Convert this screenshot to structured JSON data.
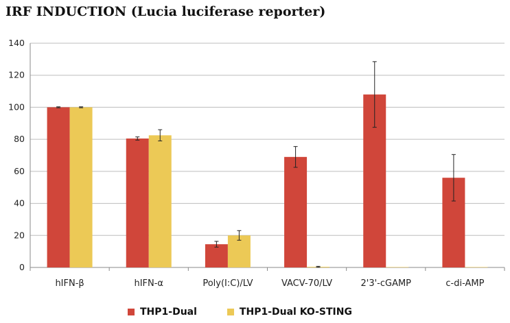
{
  "chart_data": {
    "type": "bar",
    "title": "IRF INDUCTION (Lucia luciferase reporter)",
    "xlabel": "",
    "ylabel": "",
    "ylim": [
      0,
      140
    ],
    "yticks": [
      0,
      20,
      40,
      60,
      80,
      100,
      120,
      140
    ],
    "grid": true,
    "legend_position": "bottom",
    "categories": [
      "hIFN-β",
      "hIFN-α",
      "Poly(I:C)/LV",
      "VACV-70/LV",
      "2'3'-cGAMP",
      "c-di-AMP"
    ],
    "series": [
      {
        "name": "THP1-Dual",
        "color": "#d0463a",
        "values": [
          100,
          80.5,
          14.5,
          69,
          108,
          56
        ],
        "errors": [
          0.3,
          1,
          1.8,
          6.5,
          20.5,
          14.5
        ]
      },
      {
        "name": "THP1-Dual KO-STING",
        "color": "#ecc956",
        "values": [
          100,
          82.5,
          20,
          0.4,
          0.2,
          0.2
        ],
        "errors": [
          0.3,
          3.5,
          3,
          0.3,
          0.1,
          0.1
        ]
      }
    ]
  }
}
